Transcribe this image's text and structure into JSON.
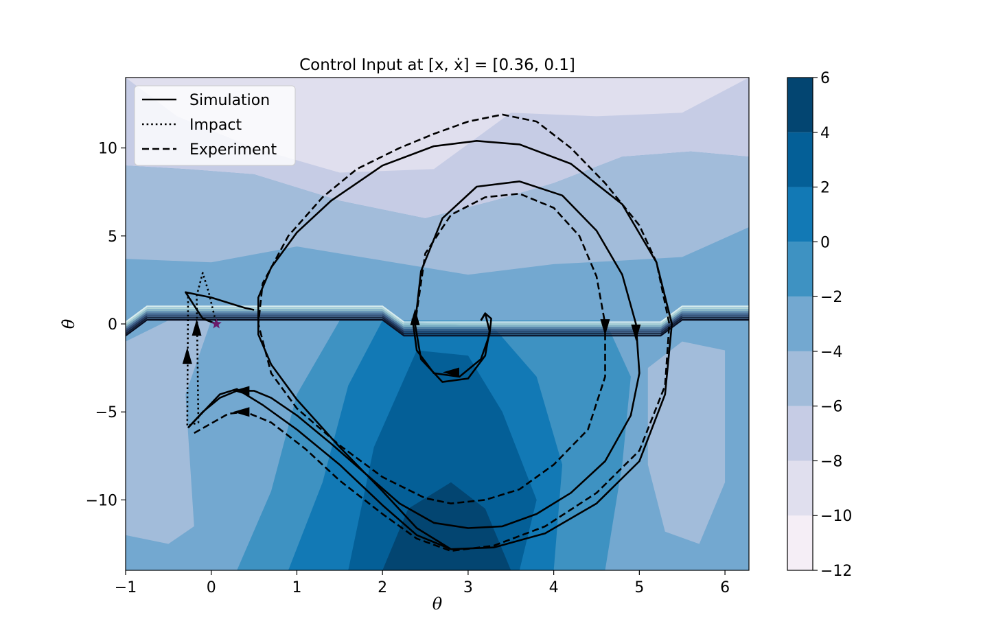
{
  "chart_data": {
    "type": "contour",
    "title": "Control Input at [x, ẋ] = [0.36, 0.1]",
    "xlabel": "θ",
    "ylabel": "θ̇",
    "xlim": [
      -1,
      6.28
    ],
    "ylim": [
      -14,
      14
    ],
    "xticks": [
      -1,
      0,
      1,
      2,
      3,
      4,
      5,
      6
    ],
    "yticks": [
      -10,
      -5,
      0,
      5,
      10
    ],
    "xtick_labels": [
      "−1",
      "0",
      "1",
      "2",
      "3",
      "4",
      "5",
      "6"
    ],
    "ytick_labels": [
      "−10",
      "−5",
      "0",
      "5",
      "10"
    ],
    "colorbar": {
      "levels": [
        -12,
        -10,
        -8,
        -6,
        -4,
        -2,
        0,
        2,
        4,
        6
      ],
      "tick_labels": [
        "−12",
        "−10",
        "−8",
        "−6",
        "−4",
        "−2",
        "0",
        "2",
        "4",
        "6"
      ],
      "colors": [
        "#f5eef6",
        "#e0dfee",
        "#c6cce5",
        "#a2bcda",
        "#73a8d0",
        "#3e92c2",
        "#1279b5",
        "#045f97",
        "#034571"
      ]
    },
    "legend": {
      "placement": "upper-left",
      "entries": [
        {
          "label": "Simulation",
          "style": "solid"
        },
        {
          "label": "Impact",
          "style": "dotted"
        },
        {
          "label": "Experiment",
          "style": "dashed"
        }
      ]
    },
    "marker": {
      "label": "start",
      "x": 0.06,
      "y": 0.0,
      "color": "#6a1b6a"
    },
    "series": [
      {
        "style": "solid",
        "points": [
          [
            0.5,
            0.8
          ],
          [
            0.4,
            0.9
          ],
          [
            0.3,
            1.05
          ],
          [
            0.2,
            1.2
          ],
          [
            0.1,
            1.35
          ],
          [
            0.0,
            1.5
          ],
          [
            -0.1,
            1.6
          ],
          [
            -0.2,
            1.7
          ],
          [
            -0.3,
            1.8
          ],
          [
            -0.1,
            0.3
          ],
          [
            0.06,
            0.0
          ]
        ]
      },
      {
        "style": "solid",
        "points": [
          [
            -0.27,
            -5.9
          ],
          [
            -0.1,
            -5.0
          ],
          [
            0.1,
            -4.2
          ],
          [
            0.3,
            -3.8
          ],
          [
            0.5,
            -3.8
          ],
          [
            0.7,
            -4.2
          ],
          [
            1.0,
            -5.2
          ],
          [
            1.4,
            -6.8
          ],
          [
            1.8,
            -8.5
          ],
          [
            2.2,
            -10.2
          ],
          [
            2.6,
            -11.3
          ],
          [
            3.0,
            -11.6
          ],
          [
            3.4,
            -11.5
          ],
          [
            3.8,
            -10.8
          ],
          [
            4.2,
            -9.6
          ],
          [
            4.6,
            -7.8
          ],
          [
            4.9,
            -5.2
          ],
          [
            5.0,
            -2.8
          ],
          [
            4.96,
            0.0
          ],
          [
            4.8,
            2.8
          ],
          [
            4.5,
            5.3
          ],
          [
            4.1,
            7.3
          ],
          [
            3.6,
            8.1
          ],
          [
            3.1,
            7.8
          ],
          [
            2.7,
            6.0
          ],
          [
            2.45,
            3.0
          ],
          [
            2.38,
            0.0
          ],
          [
            2.45,
            -2.0
          ],
          [
            2.7,
            -3.3
          ],
          [
            3.0,
            -3.1
          ],
          [
            3.2,
            -1.8
          ],
          [
            3.25,
            -0.4
          ],
          [
            3.2,
            0.6
          ],
          [
            3.15,
            0.2
          ]
        ]
      },
      {
        "style": "solid",
        "points": [
          [
            3.15,
            0.2
          ],
          [
            3.2,
            0.6
          ],
          [
            3.27,
            0.3
          ],
          [
            3.25,
            -0.6
          ],
          [
            3.15,
            -2.0
          ],
          [
            2.9,
            -3.0
          ],
          [
            2.6,
            -2.8
          ],
          [
            2.4,
            -1.5
          ],
          [
            2.35,
            0.3
          ]
        ]
      },
      {
        "style": "solid",
        "points": [
          [
            -0.27,
            -5.9
          ],
          [
            0.1,
            -4.0
          ],
          [
            0.3,
            -3.7
          ],
          [
            0.6,
            -4.6
          ],
          [
            1.0,
            -6.0
          ],
          [
            1.5,
            -8.0
          ],
          [
            2.0,
            -10.3
          ],
          [
            2.4,
            -12.0
          ],
          [
            2.8,
            -12.8
          ],
          [
            3.3,
            -12.7
          ],
          [
            3.9,
            -11.9
          ],
          [
            4.5,
            -10.2
          ],
          [
            5.0,
            -7.8
          ],
          [
            5.3,
            -4.0
          ],
          [
            5.38,
            0.0
          ],
          [
            5.2,
            3.5
          ],
          [
            4.8,
            6.8
          ],
          [
            4.2,
            9.1
          ],
          [
            3.6,
            10.2
          ],
          [
            3.1,
            10.4
          ],
          [
            2.6,
            10.1
          ],
          [
            2.0,
            9.0
          ],
          [
            1.4,
            7.0
          ],
          [
            1.0,
            5.2
          ],
          [
            0.7,
            3.2
          ],
          [
            0.55,
            1.5
          ],
          [
            0.55,
            -0.6
          ],
          [
            0.7,
            -2.3
          ],
          [
            1.0,
            -4.3
          ],
          [
            1.5,
            -7.0
          ],
          [
            2.0,
            -9.5
          ],
          [
            2.4,
            -11.6
          ],
          [
            2.8,
            -12.8
          ]
        ]
      },
      {
        "style": "dotted",
        "points": [
          [
            -0.27,
            1.8
          ],
          [
            -0.28,
            -5.8
          ],
          [
            -0.15,
            -5.6
          ],
          [
            -0.17,
            1.6
          ],
          [
            -0.1,
            2.9
          ],
          [
            -0.03,
            1.8
          ],
          [
            0.06,
            0.0
          ]
        ]
      },
      {
        "style": "dashed",
        "points": [
          [
            -0.2,
            -6.2
          ],
          [
            0.2,
            -5.1
          ],
          [
            0.4,
            -5.0
          ],
          [
            0.7,
            -5.6
          ],
          [
            1.1,
            -7.1
          ],
          [
            1.5,
            -8.9
          ],
          [
            2.0,
            -10.8
          ],
          [
            2.4,
            -12.2
          ],
          [
            2.8,
            -12.9
          ],
          [
            3.3,
            -12.6
          ],
          [
            3.9,
            -11.5
          ],
          [
            4.5,
            -9.6
          ],
          [
            5.0,
            -7.2
          ],
          [
            5.3,
            -3.5
          ],
          [
            5.35,
            0.0
          ],
          [
            5.2,
            3.5
          ],
          [
            5.0,
            5.6
          ],
          [
            4.6,
            8.0
          ],
          [
            4.2,
            10.0
          ],
          [
            3.8,
            11.5
          ],
          [
            3.4,
            11.9
          ],
          [
            3.0,
            11.5
          ],
          [
            2.6,
            10.8
          ],
          [
            2.2,
            10.0
          ],
          [
            1.7,
            8.8
          ],
          [
            1.3,
            7.2
          ],
          [
            0.9,
            5.0
          ],
          [
            0.6,
            2.3
          ],
          [
            0.55,
            0.0
          ],
          [
            0.7,
            -2.8
          ],
          [
            1.0,
            -4.8
          ],
          [
            1.5,
            -6.9
          ],
          [
            2.0,
            -8.7
          ],
          [
            2.5,
            -9.9
          ],
          [
            2.8,
            -10.2
          ],
          [
            3.2,
            -10.0
          ],
          [
            3.6,
            -9.4
          ],
          [
            4.0,
            -8.0
          ],
          [
            4.4,
            -6.0
          ],
          [
            4.6,
            -3.0
          ],
          [
            4.6,
            0.0
          ],
          [
            4.5,
            2.7
          ],
          [
            4.3,
            5.0
          ],
          [
            4.0,
            6.6
          ],
          [
            3.6,
            7.4
          ],
          [
            3.2,
            7.2
          ],
          [
            2.8,
            6.2
          ],
          [
            2.5,
            4.0
          ],
          [
            2.38,
            0.0
          ]
        ]
      }
    ],
    "arrows": [
      {
        "x": 0.35,
        "y": -3.8,
        "dir": "left"
      },
      {
        "x": 0.35,
        "y": -5.0,
        "dir": "left"
      },
      {
        "x": 2.8,
        "y": -2.75,
        "dir": "left"
      },
      {
        "x": 2.38,
        "y": 0.4,
        "dir": "up"
      },
      {
        "x": 4.6,
        "y": -0.2,
        "dir": "down"
      },
      {
        "x": 4.96,
        "y": -0.5,
        "dir": "down"
      },
      {
        "x": -0.28,
        "y": -1.8,
        "dir": "up"
      },
      {
        "x": -0.17,
        "y": -0.2,
        "dir": "up"
      }
    ]
  }
}
